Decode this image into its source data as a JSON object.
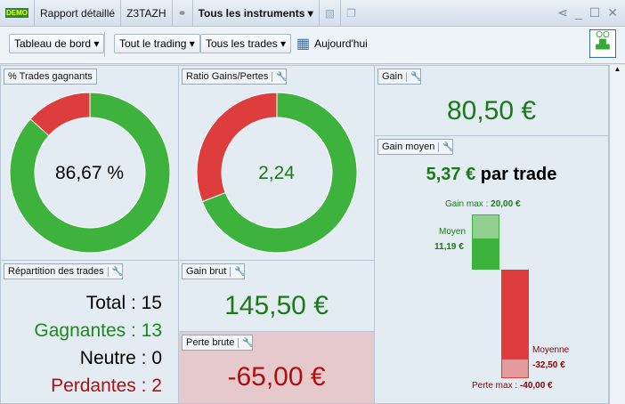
{
  "titlebar": {
    "demo_badge": "DEMO",
    "report": "Rapport détaillé",
    "account": "Z3TAZH",
    "instruments": "Tous les instruments"
  },
  "toolbar": {
    "dashboard": "Tableau de bord",
    "trading": "Tout le trading",
    "trades": "Tous les trades",
    "date": "Aujourd'hui"
  },
  "win_rate": {
    "title": "% Trades gagnants",
    "value": "86,67 %",
    "percent": 86.67,
    "colors": {
      "win": "#3db33d",
      "loss": "#dd3d3d"
    }
  },
  "ratio": {
    "title": "Ratio Gains/Pertes",
    "value": "2,24",
    "gain_share": 69.1
  },
  "gain": {
    "title": "Gain",
    "value": "80,50 €"
  },
  "avg_gain": {
    "title": "Gain moyen",
    "value": "5,37 €",
    "suffix": "par trade",
    "max_gain_label": "Gain max :",
    "max_gain": "20,00 €",
    "avg_label": "Moyen",
    "avg": "11,19 €",
    "avg_loss_label": "Moyenne",
    "avg_loss": "-32,50 €",
    "max_loss_label": "Perte max :",
    "max_loss": "-40,00 €"
  },
  "distribution": {
    "title": "Répartition des trades",
    "total": "Total : 15",
    "win": "Gagnantes : 13",
    "neutral": "Neutre : 0",
    "loss": "Perdantes : 2"
  },
  "gross_gain": {
    "title": "Gain brut",
    "value": "145,50 €"
  },
  "gross_loss": {
    "title": "Perte brute",
    "value": "-65,00 €"
  }
}
